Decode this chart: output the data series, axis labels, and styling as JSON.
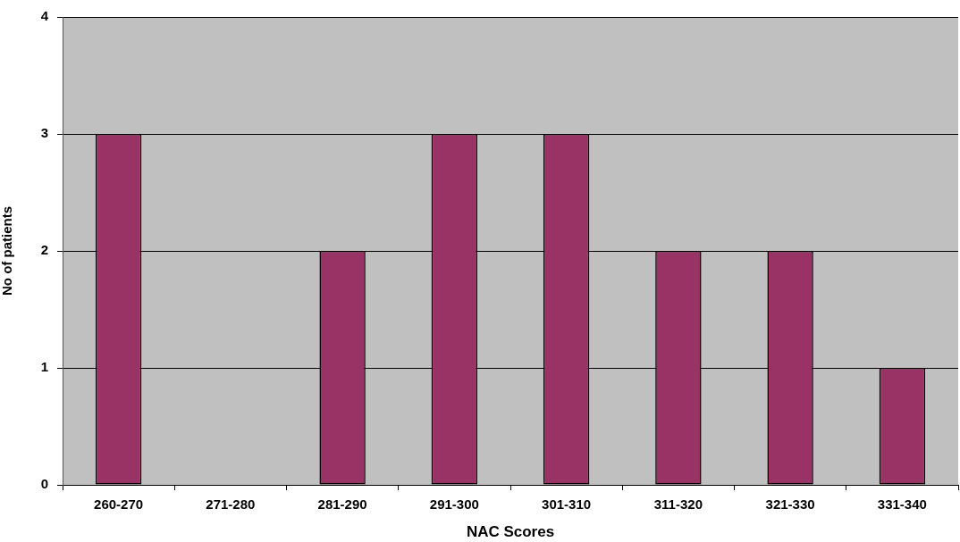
{
  "chart_data": {
    "type": "bar",
    "xlabel": "NAC Scores",
    "ylabel": "No of patients",
    "categories": [
      "260-270",
      "271-280",
      "281-290",
      "291-300",
      "301-310",
      "311-320",
      "321-330",
      "331-340"
    ],
    "values": [
      3,
      0,
      2,
      3,
      3,
      2,
      2,
      1
    ],
    "color": "#993366",
    "ylim": [
      0,
      4
    ],
    "yticks": [
      0,
      1,
      2,
      3,
      4
    ],
    "grid": "y"
  }
}
